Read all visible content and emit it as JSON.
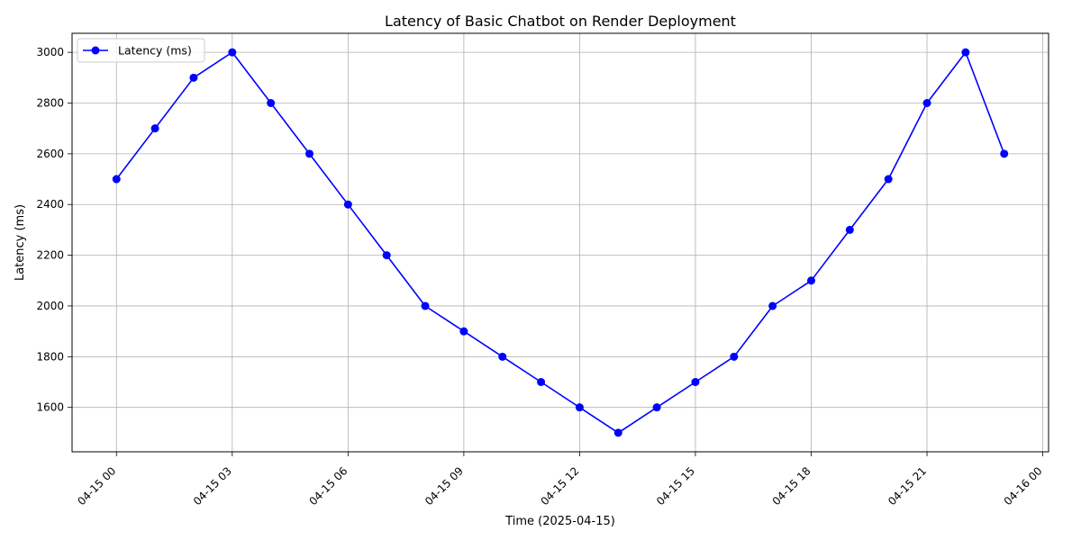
{
  "chart_data": {
    "type": "line",
    "title": "Latency of Basic Chatbot on Render Deployment",
    "xlabel": "Time (2025-04-15)",
    "ylabel": "Latency (ms)",
    "x": [
      "2025-04-15 00:00",
      "2025-04-15 01:00",
      "2025-04-15 02:00",
      "2025-04-15 03:00",
      "2025-04-15 04:00",
      "2025-04-15 05:00",
      "2025-04-15 06:00",
      "2025-04-15 07:00",
      "2025-04-15 08:00",
      "2025-04-15 09:00",
      "2025-04-15 10:00",
      "2025-04-15 11:00",
      "2025-04-15 12:00",
      "2025-04-15 13:00",
      "2025-04-15 14:00",
      "2025-04-15 15:00",
      "2025-04-15 16:00",
      "2025-04-15 17:00",
      "2025-04-15 18:00",
      "2025-04-15 19:00",
      "2025-04-15 20:00",
      "2025-04-15 21:00",
      "2025-04-15 22:00",
      "2025-04-15 23:00"
    ],
    "series": [
      {
        "name": "Latency (ms)",
        "color": "#0000ff",
        "marker": "circle",
        "values": [
          2500,
          2700,
          2900,
          3000,
          2800,
          2600,
          2400,
          2200,
          2000,
          1900,
          1800,
          1700,
          1600,
          1500,
          1600,
          1700,
          1800,
          2000,
          2100,
          2300,
          2500,
          2800,
          3000,
          2600
        ]
      }
    ],
    "x_ticks": [
      "04-15 00",
      "04-15 03",
      "04-15 06",
      "04-15 09",
      "04-15 12",
      "04-15 15",
      "04-15 18",
      "04-15 21",
      "04-16 00"
    ],
    "y_ticks": [
      1600,
      1800,
      2000,
      2200,
      2400,
      2600,
      2800,
      3000
    ],
    "xlim": [
      "2025-04-14 22:51",
      "2025-04-16 00:09"
    ],
    "ylim": [
      1425,
      3075
    ],
    "grid": true,
    "legend_position": "upper-left"
  }
}
